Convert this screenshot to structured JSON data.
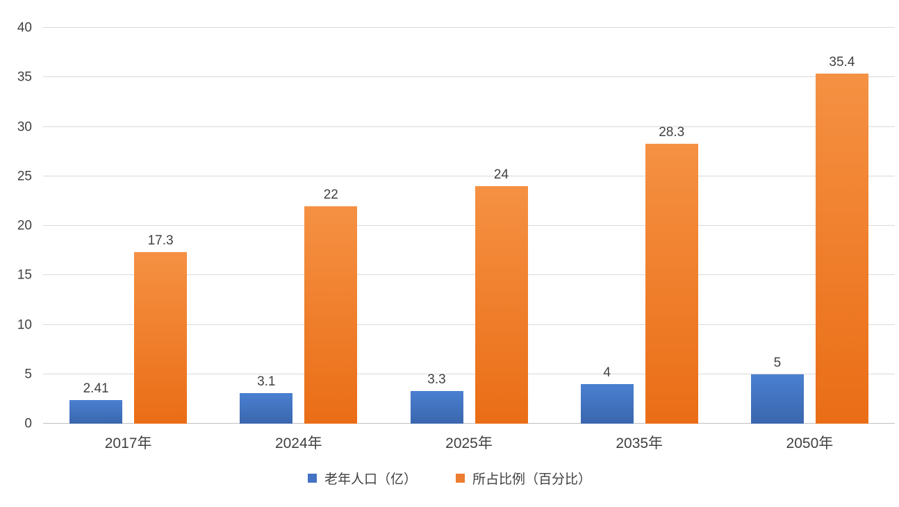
{
  "chart_data": {
    "type": "bar",
    "title": "",
    "xlabel": "",
    "ylabel": "",
    "categories": [
      "2017年",
      "2024年",
      "2025年",
      "2035年",
      "2050年"
    ],
    "series": [
      {
        "name": "老年人口（亿）",
        "color": "#4472c4",
        "gradient_top": "#4a80d1",
        "gradient_bottom": "#3a66ad",
        "values": [
          2.41,
          3.1,
          3.3,
          4,
          5
        ],
        "labels": [
          "2.41",
          "3.1",
          "3.3",
          "4",
          "5"
        ]
      },
      {
        "name": "所占比例（百分比）",
        "color": "#ed7d31",
        "gradient_top": "#f59143",
        "gradient_bottom": "#ea6d16",
        "values": [
          17.3,
          22,
          24,
          28.3,
          35.4
        ],
        "labels": [
          "17.3",
          "22",
          "24",
          "28.3",
          "35.4"
        ]
      }
    ],
    "ylim": [
      0,
      40
    ],
    "yticks": [
      0,
      5,
      10,
      15,
      20,
      25,
      30,
      35,
      40
    ],
    "grid": true,
    "gridline_color": "#d9d9d9",
    "text_color": "#404040",
    "legend_position": "bottom"
  }
}
